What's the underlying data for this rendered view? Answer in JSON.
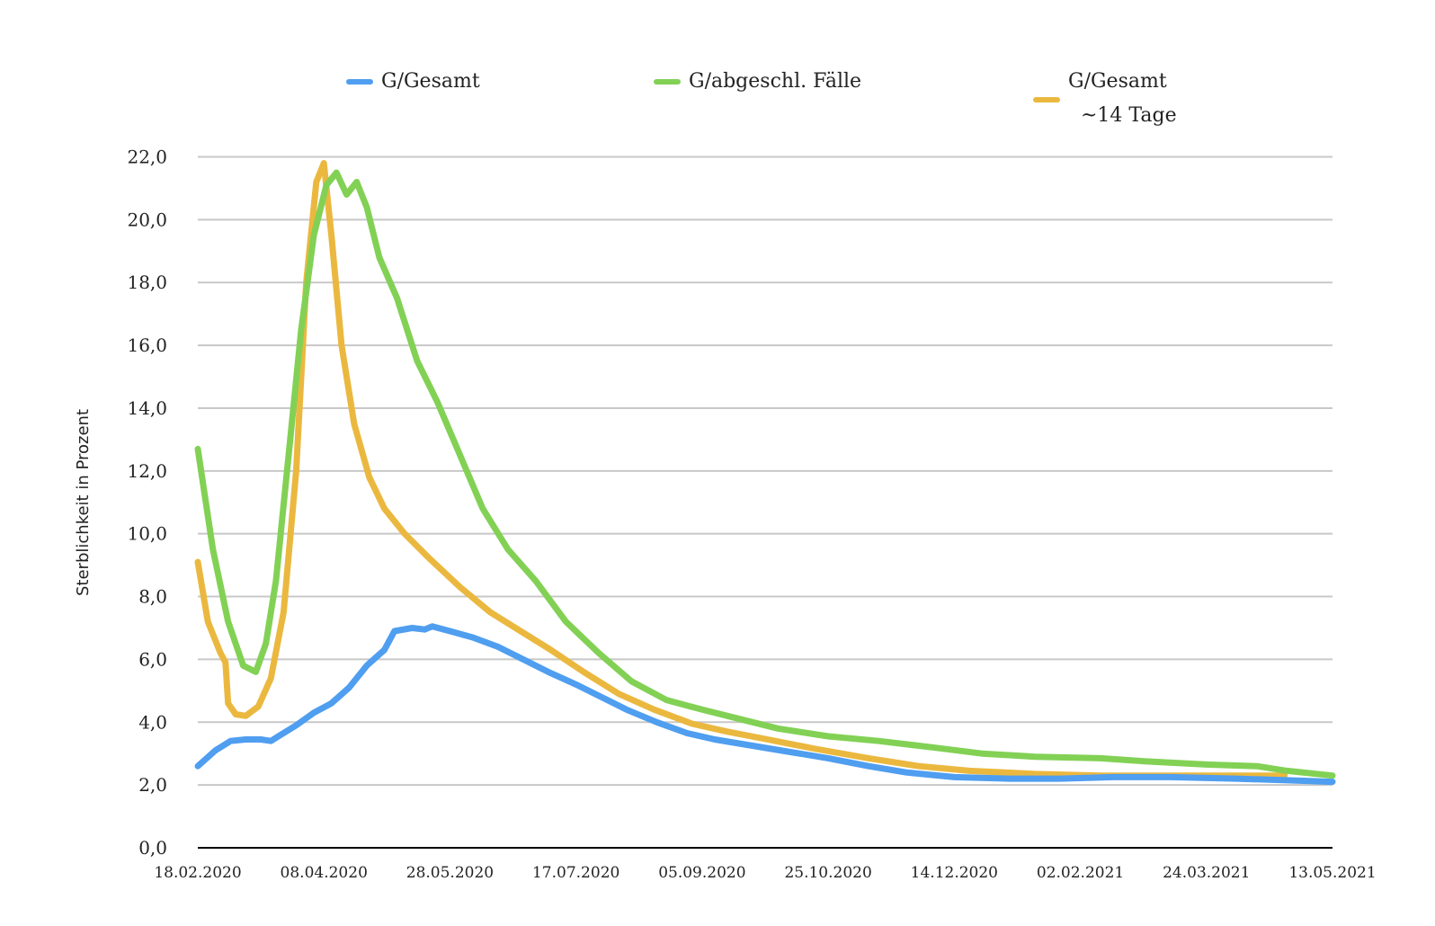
{
  "chart_data": {
    "type": "line",
    "title": "",
    "xlabel": "",
    "ylabel": "Sterblichkeit in Prozent",
    "ylim": [
      0,
      22
    ],
    "y_ticks": [
      "0,0",
      "2,0",
      "4,0",
      "6,0",
      "8,0",
      "10,0",
      "12,0",
      "14,0",
      "16,0",
      "18,0",
      "20,0",
      "22,0"
    ],
    "x_ticks": [
      "18.02.2020",
      "08.04.2020",
      "28.05.2020",
      "17.07.2020",
      "05.09.2020",
      "25.10.2020",
      "14.12.2020",
      "02.02.2021",
      "24.03.2021",
      "13.05.2021"
    ],
    "x_range": [
      "18.02.2020",
      "13.05.2021"
    ],
    "grid": "horizontal",
    "legend_position": "top",
    "series": [
      {
        "name": "G/Gesamt",
        "color": "#4f9ef0",
        "points": [
          [
            "18.02.2020",
            2.6
          ],
          [
            "25.02.2020",
            3.1
          ],
          [
            "02.03.2020",
            3.4
          ],
          [
            "08.03.2020",
            3.45
          ],
          [
            "14.03.2020",
            3.45
          ],
          [
            "18.03.2020",
            3.4
          ],
          [
            "22.03.2020",
            3.6
          ],
          [
            "28.03.2020",
            3.9
          ],
          [
            "04.04.2020",
            4.3
          ],
          [
            "11.04.2020",
            4.6
          ],
          [
            "18.04.2020",
            5.1
          ],
          [
            "25.04.2020",
            5.8
          ],
          [
            "02.05.2020",
            6.3
          ],
          [
            "06.05.2020",
            6.9
          ],
          [
            "13.05.2020",
            7.0
          ],
          [
            "18.05.2020",
            6.95
          ],
          [
            "21.05.2020",
            7.05
          ],
          [
            "28.05.2020",
            6.9
          ],
          [
            "06.06.2020",
            6.7
          ],
          [
            "16.06.2020",
            6.4
          ],
          [
            "26.06.2020",
            6.0
          ],
          [
            "06.07.2020",
            5.6
          ],
          [
            "17.07.2020",
            5.2
          ],
          [
            "27.07.2020",
            4.8
          ],
          [
            "06.08.2020",
            4.4
          ],
          [
            "18.08.2020",
            4.0
          ],
          [
            "30.08.2020",
            3.65
          ],
          [
            "10.09.2020",
            3.45
          ],
          [
            "25.09.2020",
            3.25
          ],
          [
            "10.10.2020",
            3.05
          ],
          [
            "25.10.2020",
            2.85
          ],
          [
            "10.11.2020",
            2.6
          ],
          [
            "25.11.2020",
            2.4
          ],
          [
            "14.12.2020",
            2.25
          ],
          [
            "05.01.2021",
            2.2
          ],
          [
            "25.01.2021",
            2.2
          ],
          [
            "15.02.2021",
            2.25
          ],
          [
            "10.03.2021",
            2.25
          ],
          [
            "05.04.2021",
            2.2
          ],
          [
            "25.04.2021",
            2.15
          ],
          [
            "13.05.2021",
            2.1
          ]
        ]
      },
      {
        "name": "G/abgeschl. Fälle",
        "color": "#82d155",
        "points": [
          [
            "18.02.2020",
            12.7
          ],
          [
            "24.02.2020",
            9.5
          ],
          [
            "01.03.2020",
            7.2
          ],
          [
            "07.03.2020",
            5.8
          ],
          [
            "12.03.2020",
            5.6
          ],
          [
            "16.03.2020",
            6.5
          ],
          [
            "20.03.2020",
            8.5
          ],
          [
            "25.03.2020",
            12.5
          ],
          [
            "30.03.2020",
            16.5
          ],
          [
            "04.04.2020",
            19.5
          ],
          [
            "09.04.2020",
            21.1
          ],
          [
            "13.04.2020",
            21.5
          ],
          [
            "17.04.2020",
            20.8
          ],
          [
            "21.04.2020",
            21.2
          ],
          [
            "25.04.2020",
            20.4
          ],
          [
            "30.04.2020",
            18.8
          ],
          [
            "07.05.2020",
            17.5
          ],
          [
            "15.05.2020",
            15.5
          ],
          [
            "23.05.2020",
            14.2
          ],
          [
            "01.06.2020",
            12.5
          ],
          [
            "10.06.2020",
            10.8
          ],
          [
            "20.06.2020",
            9.5
          ],
          [
            "01.07.2020",
            8.5
          ],
          [
            "13.07.2020",
            7.2
          ],
          [
            "26.07.2020",
            6.2
          ],
          [
            "08.08.2020",
            5.3
          ],
          [
            "22.08.2020",
            4.7
          ],
          [
            "05.09.2020",
            4.4
          ],
          [
            "20.09.2020",
            4.1
          ],
          [
            "05.10.2020",
            3.8
          ],
          [
            "25.10.2020",
            3.55
          ],
          [
            "14.11.2020",
            3.4
          ],
          [
            "05.12.2020",
            3.2
          ],
          [
            "25.12.2020",
            3.0
          ],
          [
            "15.01.2021",
            2.9
          ],
          [
            "10.02.2021",
            2.85
          ],
          [
            "28.02.2021",
            2.75
          ],
          [
            "24.03.2021",
            2.65
          ],
          [
            "13.04.2021",
            2.6
          ],
          [
            "25.04.2021",
            2.45
          ],
          [
            "13.05.2021",
            2.3
          ]
        ]
      },
      {
        "name": "G/Gesamt ~14 Tage",
        "color": "#ebb83f",
        "points": [
          [
            "18.02.2020",
            9.1
          ],
          [
            "22.02.2020",
            7.2
          ],
          [
            "27.02.2020",
            6.2
          ],
          [
            "29.02.2020",
            5.9
          ],
          [
            "01.03.2020",
            4.6
          ],
          [
            "04.03.2020",
            4.25
          ],
          [
            "08.03.2020",
            4.2
          ],
          [
            "13.03.2020",
            4.5
          ],
          [
            "18.03.2020",
            5.4
          ],
          [
            "23.03.2020",
            7.5
          ],
          [
            "28.03.2020",
            12.0
          ],
          [
            "01.04.2020",
            18.0
          ],
          [
            "05.04.2020",
            21.2
          ],
          [
            "08.04.2020",
            21.8
          ],
          [
            "11.04.2020",
            19.5
          ],
          [
            "15.04.2020",
            16.0
          ],
          [
            "20.04.2020",
            13.5
          ],
          [
            "26.04.2020",
            11.8
          ],
          [
            "02.05.2020",
            10.8
          ],
          [
            "10.05.2020",
            10.0
          ],
          [
            "20.05.2020",
            9.2
          ],
          [
            "01.06.2020",
            8.3
          ],
          [
            "13.06.2020",
            7.5
          ],
          [
            "25.06.2020",
            6.9
          ],
          [
            "07.07.2020",
            6.3
          ],
          [
            "20.07.2020",
            5.6
          ],
          [
            "03.08.2020",
            4.9
          ],
          [
            "17.08.2020",
            4.4
          ],
          [
            "01.09.2020",
            3.95
          ],
          [
            "15.09.2020",
            3.7
          ],
          [
            "01.10.2020",
            3.45
          ],
          [
            "20.10.2020",
            3.15
          ],
          [
            "10.11.2020",
            2.85
          ],
          [
            "30.11.2020",
            2.6
          ],
          [
            "20.12.2020",
            2.45
          ],
          [
            "15.01.2021",
            2.35
          ],
          [
            "10.02.2021",
            2.3
          ],
          [
            "10.03.2021",
            2.3
          ],
          [
            "05.04.2021",
            2.3
          ],
          [
            "24.04.2021",
            2.3
          ]
        ]
      }
    ]
  },
  "legend": {
    "items": [
      {
        "lines": [
          "G/Gesamt"
        ],
        "color": "#4f9ef0"
      },
      {
        "lines": [
          "G/abgeschl. Fälle"
        ],
        "color": "#82d155"
      },
      {
        "lines": [
          "G/Gesamt",
          "~14 Tage"
        ],
        "color": "#ebb83f"
      }
    ]
  }
}
